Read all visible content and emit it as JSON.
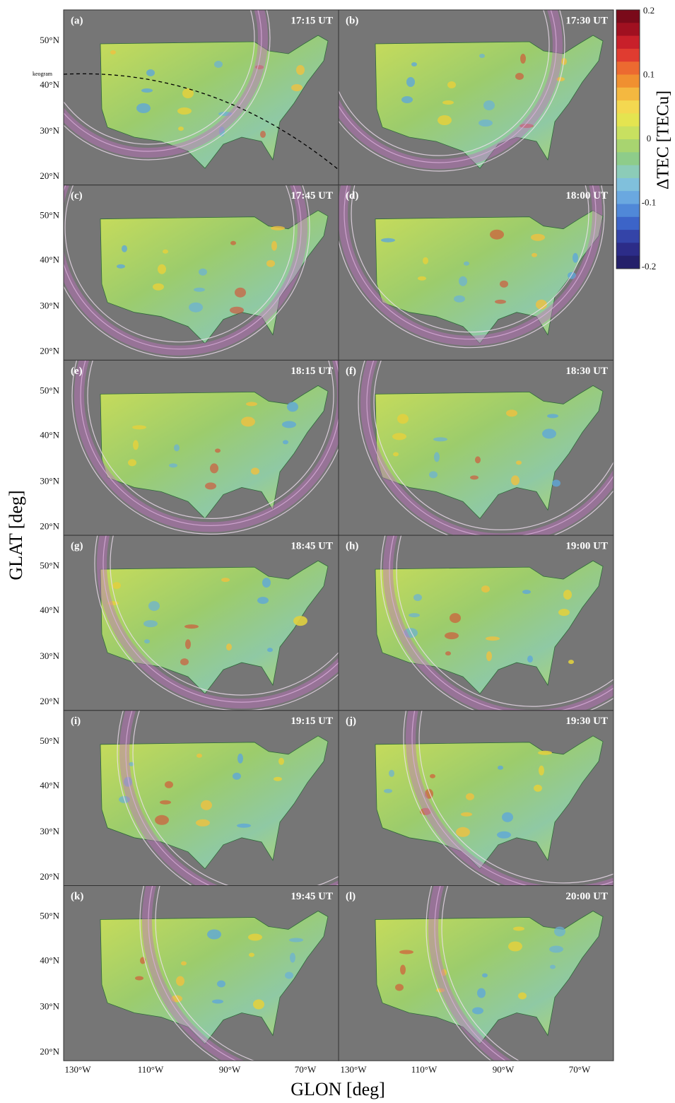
{
  "panels": [
    {
      "label": "(a)",
      "time": "17:15 UT"
    },
    {
      "label": "(b)",
      "time": "17:30 UT"
    },
    {
      "label": "(c)",
      "time": "17:45 UT"
    },
    {
      "label": "(d)",
      "time": "18:00 UT"
    },
    {
      "label": "(e)",
      "time": "18:15 UT"
    },
    {
      "label": "(f)",
      "time": "18:30 UT"
    },
    {
      "label": "(g)",
      "time": "18:45 UT"
    },
    {
      "label": "(h)",
      "time": "19:00 UT"
    },
    {
      "label": "(i)",
      "time": "19:15 UT"
    },
    {
      "label": "(j)",
      "time": "19:30 UT"
    },
    {
      "label": "(k)",
      "time": "19:45 UT"
    },
    {
      "label": "(l)",
      "time": "20:00 UT"
    }
  ],
  "lat_ticks": [
    "50°N",
    "40°N",
    "30°N",
    "20°N"
  ],
  "lon_ticks": [
    "130°W",
    "110°W",
    "90°W",
    "70°W"
  ],
  "x_axis_label": "GLON [deg]",
  "y_axis_label": "GLAT [deg]",
  "colorbar": {
    "label": "ΔTEC [TECu]",
    "ticks": [
      "0.2",
      "0.1",
      "0",
      "-0.1",
      "-0.2"
    ]
  },
  "keogram_label": "keogram"
}
